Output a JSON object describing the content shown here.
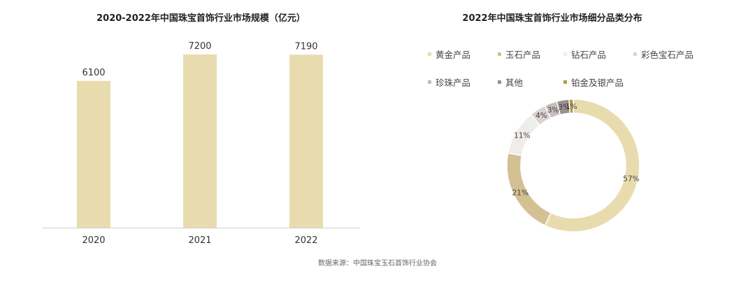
{
  "chart_data": [
    {
      "type": "bar",
      "title": "2020-2022年中国珠宝首饰行业市场规模（亿元）",
      "categories": [
        "2020",
        "2021",
        "2022"
      ],
      "values": [
        6100,
        7200,
        7190
      ],
      "ylim": [
        0,
        7200
      ],
      "grid": false,
      "color": "#e8dcae"
    },
    {
      "type": "pie",
      "title": "2022年中国珠宝首饰行业市场细分品类分布",
      "donut": true,
      "legend_position": "top",
      "slices": [
        {
          "label": "黄金产品",
          "value": 57,
          "display": "57%",
          "color": "#e8dcae"
        },
        {
          "label": "玉石产品",
          "value": 21,
          "display": "21%",
          "color": "#d3c193"
        },
        {
          "label": "钻石产品",
          "value": 11,
          "display": "11%",
          "color": "#efede8"
        },
        {
          "label": "彩色宝石产品",
          "value": 4,
          "display": "4%",
          "color": "#ddd2cf"
        },
        {
          "label": "珍珠产品",
          "value": 3,
          "display": "3%",
          "color": "#c9bcbc"
        },
        {
          "label": "其他",
          "value": 3,
          "display": "3%",
          "color": "#9c8f8e"
        },
        {
          "label": "铂金及银产品",
          "value": 1,
          "display": "1%",
          "color": "#b39a4b"
        }
      ]
    }
  ],
  "source": "数据来源：中国珠宝玉石首饰行业协会"
}
